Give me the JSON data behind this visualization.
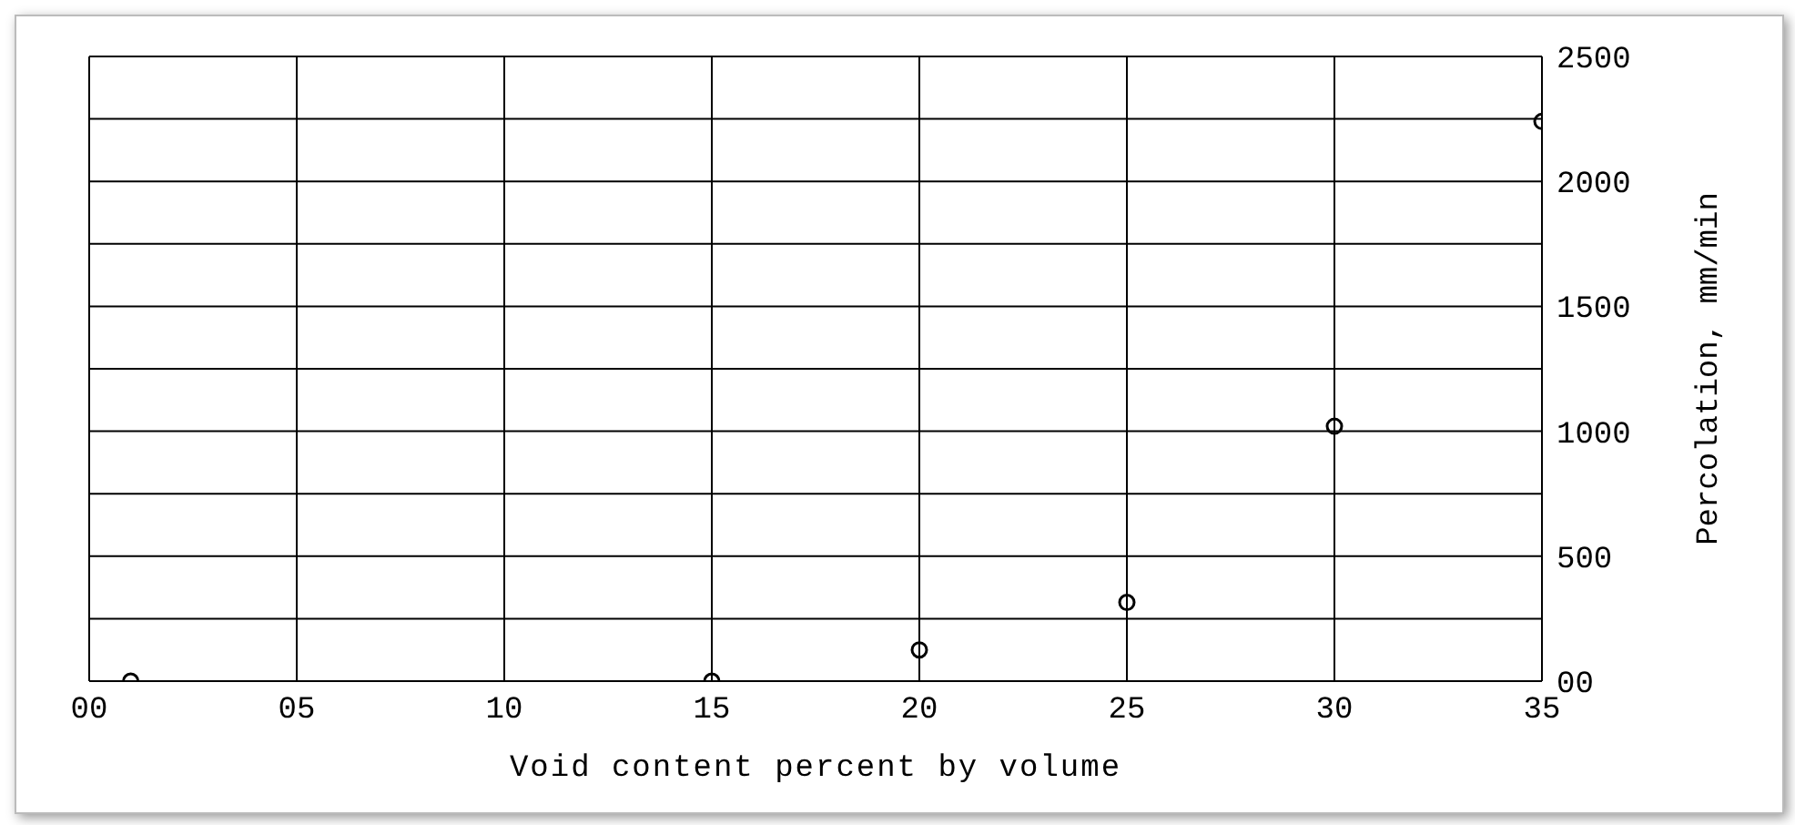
{
  "chart_data": {
    "type": "scatter",
    "xlabel": "Void content percent by volume",
    "ylabel": "Percolation, mm/min",
    "x": [
      1,
      15,
      20,
      25,
      30,
      35
    ],
    "series": [
      {
        "color": "#000000",
        "values": [
          0,
          0,
          125,
          315,
          1020,
          2240
        ]
      }
    ],
    "xlim": [
      0,
      35
    ],
    "xticks": [
      {
        "value": 0,
        "label": "00"
      },
      {
        "value": 5,
        "label": "05"
      },
      10,
      15,
      20,
      25,
      30,
      35
    ],
    "ylim": [
      0,
      2500
    ],
    "yticks": [
      {
        "value": 0,
        "label": "00"
      },
      {
        "value": 250,
        "label": null
      },
      500,
      {
        "value": 750,
        "label": null
      },
      1000,
      {
        "value": 1250,
        "label": null
      },
      1500,
      {
        "value": 1750,
        "label": null
      },
      2000,
      {
        "value": 2250,
        "label": null
      },
      2500
    ],
    "grid": true,
    "marker": "circle",
    "legend": false
  }
}
